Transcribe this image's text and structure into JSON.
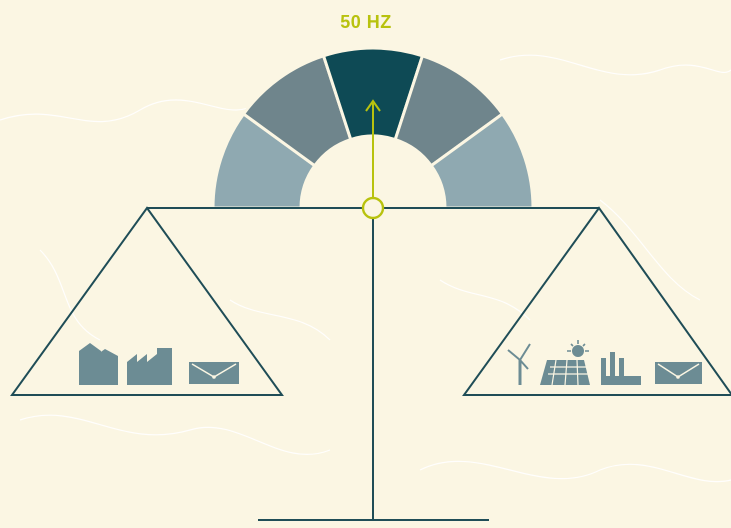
{
  "frequency": {
    "label": "50 HZ"
  },
  "gauge": {
    "segments": [
      {
        "level": "low-outer",
        "color": "#8fa9b1"
      },
      {
        "level": "low-inner",
        "color": "#6f858c"
      },
      {
        "level": "nominal",
        "color": "#0e4a55"
      },
      {
        "level": "high-inner",
        "color": "#6f858c"
      },
      {
        "level": "high-outer",
        "color": "#8fa9b1"
      }
    ],
    "indicator_segment_index": 2,
    "pointer_color": "#b8c20e"
  },
  "scale": {
    "beam_color": "#1f4d57",
    "state": "balanced"
  },
  "left_pan": {
    "side": "consumption",
    "icons": [
      "house-icon",
      "factory-icon",
      "grid-substation-icon"
    ],
    "icon_color": "#6c8c94"
  },
  "right_pan": {
    "side": "generation",
    "icons": [
      "wind-turbine-icon",
      "solar-panel-icon",
      "power-plant-icon",
      "grid-substation-icon"
    ],
    "icon_color": "#6c8c94"
  },
  "colors": {
    "background": "#fbf6e3",
    "map_lines": "#ffffff",
    "accent": "#b8c20e"
  }
}
